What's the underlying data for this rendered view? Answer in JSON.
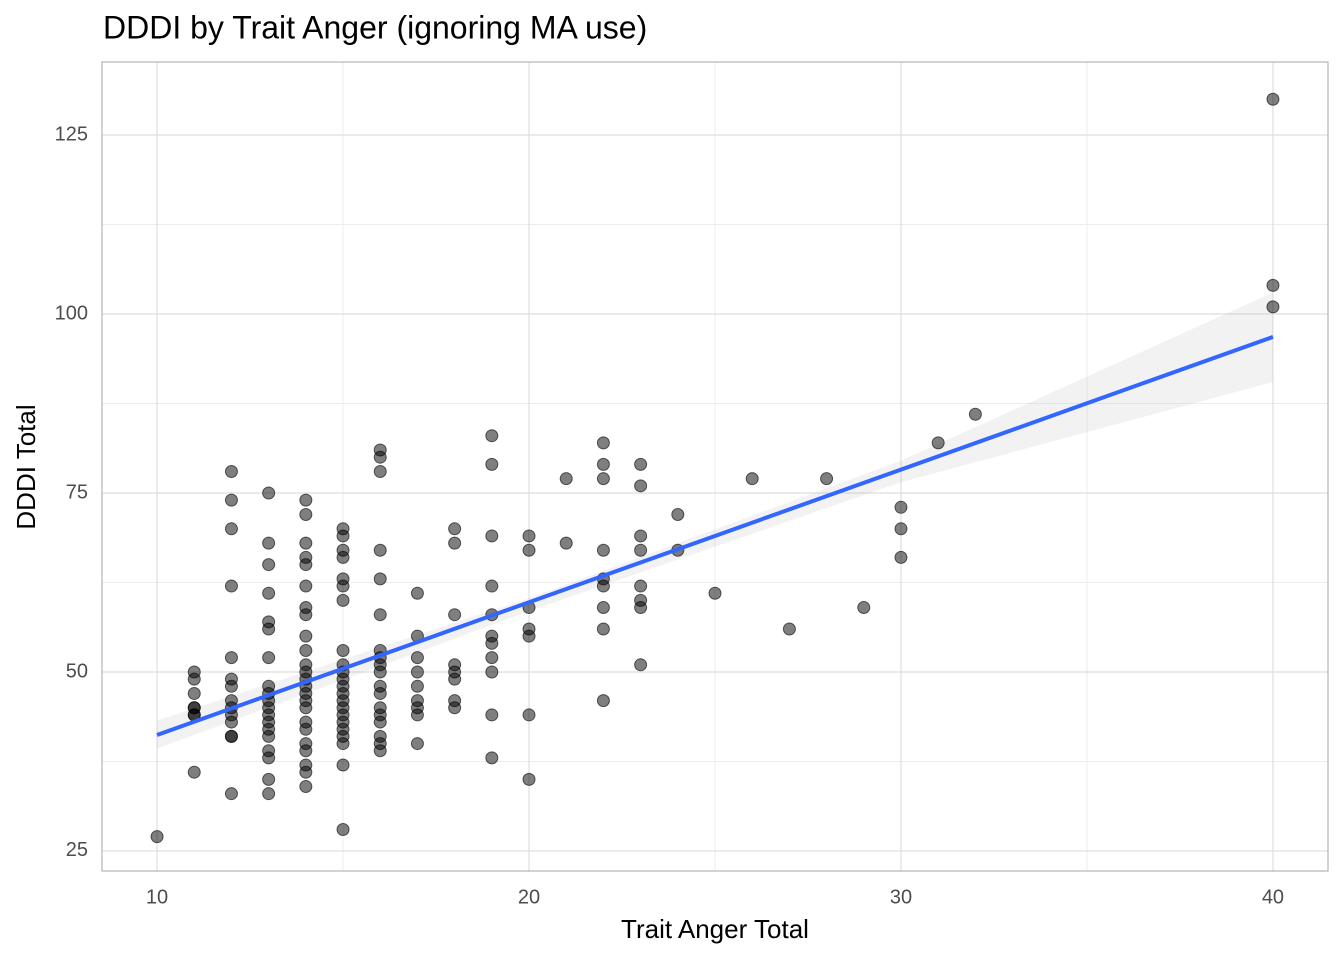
{
  "chart_data": {
    "type": "scatter",
    "title": "DDDI by Trait Anger (ignoring MA use)",
    "x_label": "Trait Anger Total",
    "y_label": "DDDI Total",
    "xlim": [
      8.52,
      41.48
    ],
    "ylim": [
      22.2,
      135.2
    ],
    "xticks": [
      10,
      20,
      30,
      40
    ],
    "yticks": [
      25,
      50,
      75,
      100,
      125
    ],
    "minor_xticks": [
      15,
      25,
      35
    ],
    "minor_yticks": [
      37.5,
      62.5,
      87.5,
      112.5
    ],
    "grid": true,
    "points": {
      "color": "#000000",
      "x": [
        10,
        11,
        11,
        11,
        11,
        11,
        11,
        11,
        11,
        12,
        12,
        12,
        12,
        12,
        12,
        12,
        12,
        12,
        12,
        12,
        12,
        12,
        12,
        13,
        13,
        13,
        13,
        13,
        13,
        13,
        13,
        13,
        13,
        13,
        13,
        13,
        13,
        13,
        13,
        13,
        13,
        13,
        14,
        14,
        14,
        14,
        14,
        14,
        14,
        14,
        14,
        14,
        14,
        14,
        14,
        14,
        14,
        14,
        14,
        14,
        14,
        14,
        14,
        14,
        14,
        14,
        15,
        15,
        15,
        15,
        15,
        15,
        15,
        15,
        15,
        15,
        15,
        15,
        15,
        15,
        15,
        15,
        15,
        15,
        15,
        15,
        15,
        15,
        16,
        16,
        16,
        16,
        16,
        16,
        16,
        16,
        16,
        16,
        16,
        16,
        16,
        16,
        16,
        16,
        16,
        16,
        17,
        17,
        17,
        17,
        17,
        17,
        17,
        17,
        17,
        18,
        18,
        18,
        18,
        18,
        18,
        18,
        18,
        19,
        19,
        19,
        19,
        19,
        19,
        19,
        19,
        19,
        19,
        19,
        20,
        20,
        20,
        20,
        20,
        20,
        20,
        21,
        21,
        22,
        22,
        22,
        22,
        22,
        22,
        22,
        22,
        22,
        23,
        23,
        23,
        23,
        23,
        23,
        23,
        23,
        24,
        24,
        25,
        26,
        27,
        28,
        29,
        30,
        30,
        30,
        31,
        32,
        40,
        40,
        40
      ],
      "values": [
        27,
        50,
        49,
        47,
        45,
        44,
        36,
        45,
        44,
        78,
        74,
        70,
        62,
        52,
        49,
        48,
        46,
        45,
        44,
        43,
        41,
        41,
        33,
        75,
        68,
        65,
        61,
        57,
        56,
        52,
        48,
        47,
        46,
        45,
        44,
        43,
        42,
        41,
        39,
        38,
        35,
        33,
        74,
        72,
        68,
        66,
        65,
        62,
        59,
        58,
        55,
        53,
        51,
        50,
        49,
        48,
        47,
        46,
        45,
        43,
        42,
        40,
        39,
        37,
        36,
        34,
        70,
        69,
        67,
        66,
        63,
        62,
        60,
        53,
        51,
        50,
        49,
        48,
        47,
        46,
        45,
        44,
        43,
        42,
        41,
        40,
        37,
        28,
        81,
        80,
        78,
        67,
        63,
        58,
        53,
        52,
        51,
        50,
        48,
        47,
        45,
        44,
        43,
        41,
        40,
        39,
        61,
        55,
        52,
        50,
        48,
        46,
        45,
        44,
        40,
        70,
        68,
        58,
        51,
        50,
        49,
        46,
        45,
        83,
        79,
        69,
        62,
        58,
        55,
        54,
        52,
        50,
        44,
        38,
        69,
        67,
        59,
        56,
        55,
        44,
        35,
        77,
        68,
        82,
        79,
        77,
        67,
        63,
        62,
        59,
        56,
        46,
        79,
        76,
        69,
        67,
        62,
        60,
        59,
        51,
        72,
        67,
        61,
        77,
        56,
        77,
        59,
        73,
        70,
        66,
        82,
        86,
        130,
        104,
        101
      ]
    },
    "fit_line": {
      "color": "#3366ff",
      "x": [
        10,
        40
      ],
      "values": [
        41.2,
        96.8
      ]
    },
    "confidence_band": {
      "color": "#bfbfbf",
      "x": [
        10,
        20,
        30,
        40
      ],
      "lower": [
        39.3,
        58.5,
        76.5,
        90.5
      ],
      "upper": [
        43.2,
        60.3,
        79.5,
        103
      ]
    }
  }
}
